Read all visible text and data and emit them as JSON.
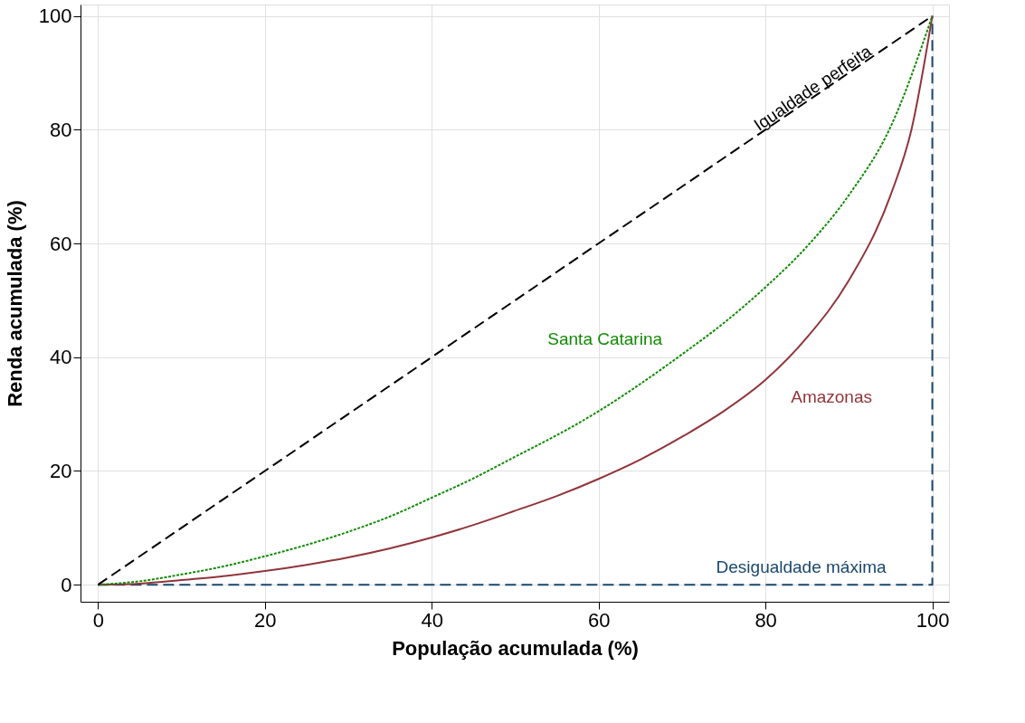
{
  "chart_data": {
    "type": "line",
    "xlabel": "População acumulada (%)",
    "ylabel": "Renda acumulada (%)",
    "xlim": [
      -2.1,
      102
    ],
    "ylim": [
      -3,
      102
    ],
    "xticks": [
      0,
      20,
      40,
      60,
      80,
      100
    ],
    "yticks": [
      0,
      20,
      40,
      60,
      80,
      100
    ],
    "grid": true,
    "legend": false,
    "marker": "none",
    "series": [
      {
        "name": "Igualdade perfeita",
        "color": "#000000",
        "line_style": "dashed",
        "x": [
          0,
          100
        ],
        "values": [
          0,
          100
        ]
      },
      {
        "name": "Santa Catarina",
        "color": "#138a07",
        "line_style": "dotted",
        "x": [
          0,
          5,
          10,
          15,
          20,
          25,
          30,
          35,
          40,
          45,
          50,
          55,
          60,
          65,
          70,
          75,
          80,
          85,
          90,
          95,
          100
        ],
        "values": [
          0,
          0.6,
          1.8,
          3.2,
          5,
          7,
          9.3,
          12,
          15.3,
          18.7,
          22.5,
          26.3,
          30.5,
          35.3,
          40.5,
          46,
          52.3,
          59.5,
          68.5,
          80.5,
          100
        ]
      },
      {
        "name": "Amazonas",
        "color": "#90353b",
        "line_style": "solid",
        "x": [
          0,
          5,
          10,
          15,
          20,
          25,
          30,
          35,
          40,
          45,
          50,
          55,
          60,
          65,
          70,
          75,
          80,
          85,
          90,
          95,
          97.5,
          100
        ],
        "values": [
          0,
          0.2,
          0.8,
          1.5,
          2.4,
          3.5,
          4.8,
          6.4,
          8.3,
          10.5,
          13,
          15.6,
          18.6,
          22,
          26,
          30.5,
          36,
          43.5,
          53.5,
          68.5,
          80,
          100
        ]
      },
      {
        "name": "Desigualdade máxima",
        "color": "#1a476f",
        "line_style": "dashed",
        "x": [
          0,
          100,
          100
        ],
        "values": [
          0,
          0,
          100
        ]
      }
    ]
  }
}
